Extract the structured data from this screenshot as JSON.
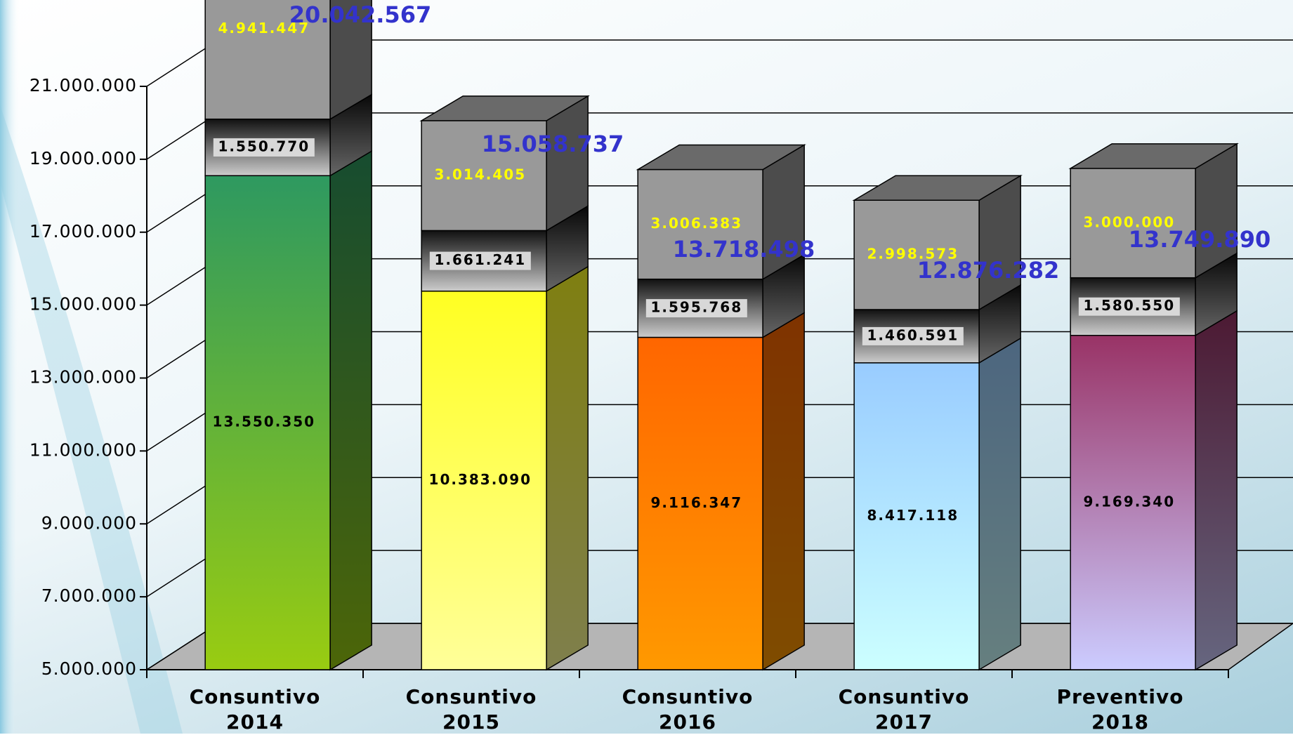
{
  "chart_data": {
    "type": "bar3d_stacked",
    "categories": [
      "Consuntivo 2014",
      "Consuntivo 2015",
      "Consuntivo 2016",
      "Consuntivo 2017",
      "Preventivo 2018"
    ],
    "series": [
      {
        "colors": [
          [
            "#2e9960",
            "#99cc11"
          ],
          [
            "#ffff22",
            "#ffff99"
          ],
          [
            "#ff6600",
            "#ff9900"
          ],
          [
            "#99ccff",
            "#ccffff"
          ],
          [
            "#993366",
            "#ccccff"
          ]
        ],
        "label_color": "#000000",
        "values": [
          13550350,
          10383090,
          9116347,
          8417118,
          9169340
        ],
        "value_labels": [
          "13.550.350",
          "10.383.090",
          "9.116.347",
          "8.417.118",
          "9.169.340"
        ]
      },
      {
        "color": [
          "#111111",
          "#cccccc"
        ],
        "label_color": "#000000",
        "values": [
          1550770,
          1661241,
          1595768,
          1460591,
          1580550
        ],
        "value_labels": [
          "1.550.770",
          "1.661.241",
          "1.595.768",
          "1.460.591",
          "1.580.550"
        ]
      },
      {
        "color": "#999999",
        "label_color": "#ffff00",
        "values": [
          4941447,
          3014405,
          3006383,
          2998573,
          3000000
        ],
        "value_labels": [
          "4.941.447",
          "3.014.405",
          "3.006.383",
          "2.998.573",
          "3.000.000"
        ]
      }
    ],
    "totals": [
      20042567,
      15058737,
      13718498,
      12876282,
      13749890
    ],
    "totals_labels": [
      "20.042.567",
      "15.058.737",
      "13.718.498",
      "12.876.282",
      "13.749.890"
    ],
    "totals_color": "#3333cc",
    "ylim": [
      5000000,
      21000000
    ],
    "yticks": [
      {
        "value": 5000000,
        "label": "5.000.000"
      },
      {
        "value": 7000000,
        "label": "7.000.000"
      },
      {
        "value": 9000000,
        "label": "9.000.000"
      },
      {
        "value": 11000000,
        "label": "11.000.000"
      },
      {
        "value": 13000000,
        "label": "13.000.000"
      },
      {
        "value": 15000000,
        "label": "15.000.000"
      },
      {
        "value": 17000000,
        "label": "17.000.000"
      },
      {
        "value": 19000000,
        "label": "19.000.000"
      },
      {
        "value": 21000000,
        "label": "21.000.000"
      }
    ],
    "grid": true
  }
}
